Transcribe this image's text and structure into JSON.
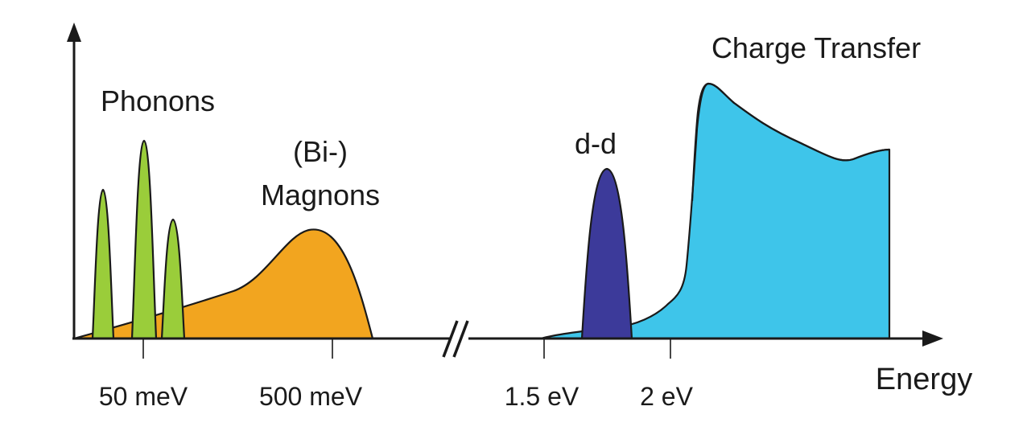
{
  "figure": {
    "x_axis_label": "Energy",
    "tick_labels": [
      "50 meV",
      "500 meV",
      "1.5 eV",
      "2 eV"
    ],
    "regions": {
      "phonons": {
        "label": "Phonons",
        "color": "#9acd3a"
      },
      "magnons": {
        "label_line1": "(Bi-)",
        "label_line2": "Magnons",
        "color": "#f2a51f"
      },
      "dd": {
        "label": "d-d",
        "color": "#3c3a9a"
      },
      "charge_transfer": {
        "label": "Charge Transfer",
        "color": "#3ec5ea"
      }
    },
    "axis_break": true
  }
}
